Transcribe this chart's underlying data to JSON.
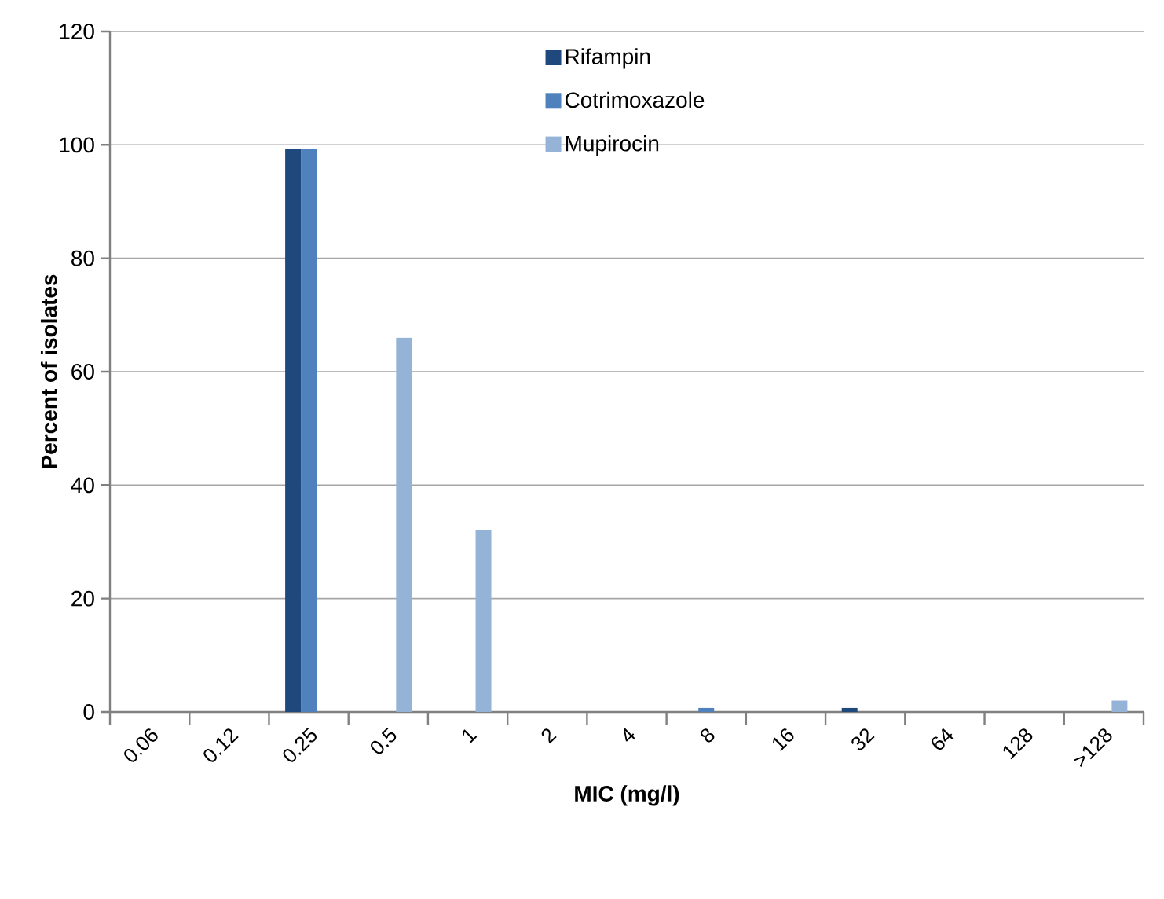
{
  "chart_data": {
    "type": "bar",
    "xlabel": "MIC (mg/l)",
    "ylabel": "Percent of isolates",
    "categories": [
      "0.06",
      "0.12",
      "0.25",
      "0.5",
      "1",
      "2",
      "4",
      "8",
      "16",
      "32",
      "64",
      "128",
      ">128"
    ],
    "series": [
      {
        "name": "Rifampin",
        "color": "#1f497d",
        "values": [
          0,
          0,
          99.3,
          0,
          0,
          0,
          0,
          0,
          0,
          0.7,
          0,
          0,
          0
        ]
      },
      {
        "name": "Cotrimoxazole",
        "color": "#4f81bd",
        "values": [
          0,
          0,
          99.3,
          0,
          0,
          0,
          0,
          0.7,
          0,
          0,
          0,
          0,
          0
        ]
      },
      {
        "name": "Mupirocin",
        "color": "#95b3d7",
        "values": [
          0,
          0,
          0,
          66,
          32,
          0,
          0,
          0,
          0,
          0,
          0,
          0,
          2
        ]
      }
    ],
    "ylim": [
      0,
      120
    ],
    "yticks": [
      0,
      20,
      40,
      60,
      80,
      100,
      120
    ],
    "grid": "y",
    "legend": "top"
  }
}
